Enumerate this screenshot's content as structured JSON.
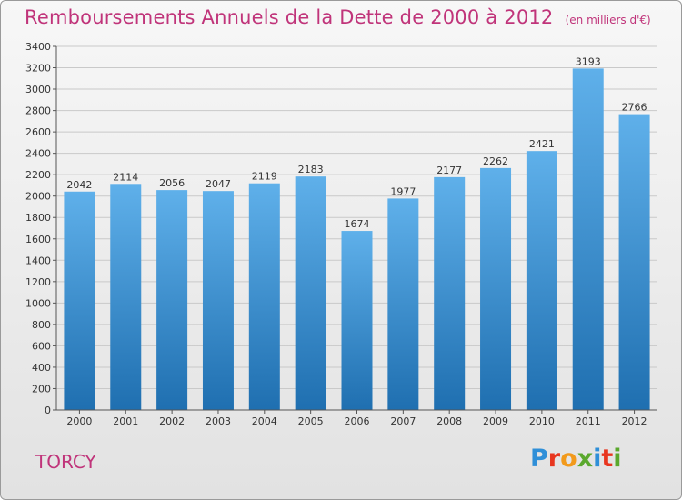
{
  "title": "Remboursements Annuels de la Dette de 2000 à 2012",
  "unit_note": "(en milliers d'€)",
  "commune": "TORCY",
  "logo": {
    "letters": [
      "P",
      "r",
      "o",
      "x",
      "i",
      "t",
      "i"
    ],
    "colors": [
      "#2f8fd8",
      "#e8361f",
      "#f29a1b",
      "#5aa82d",
      "#2f8fd8",
      "#e8361f",
      "#5aa82d"
    ]
  },
  "colors": {
    "bar_top": "#5fb0ea",
    "bar_bottom": "#1f6fb0",
    "accent": "#c0347a"
  },
  "chart_data": {
    "type": "bar",
    "categories": [
      "2000",
      "2001",
      "2002",
      "2003",
      "2004",
      "2005",
      "2006",
      "2007",
      "2008",
      "2009",
      "2010",
      "2011",
      "2012"
    ],
    "values": [
      2042,
      2114,
      2056,
      2047,
      2119,
      2183,
      1674,
      1977,
      2177,
      2262,
      2421,
      3193,
      2766
    ],
    "yticks": [
      0,
      200,
      400,
      600,
      800,
      1000,
      1200,
      1400,
      1600,
      1800,
      2000,
      2200,
      2400,
      2600,
      2800,
      3000,
      3200,
      3400
    ],
    "ylim": [
      0,
      3400
    ],
    "grid": true
  }
}
